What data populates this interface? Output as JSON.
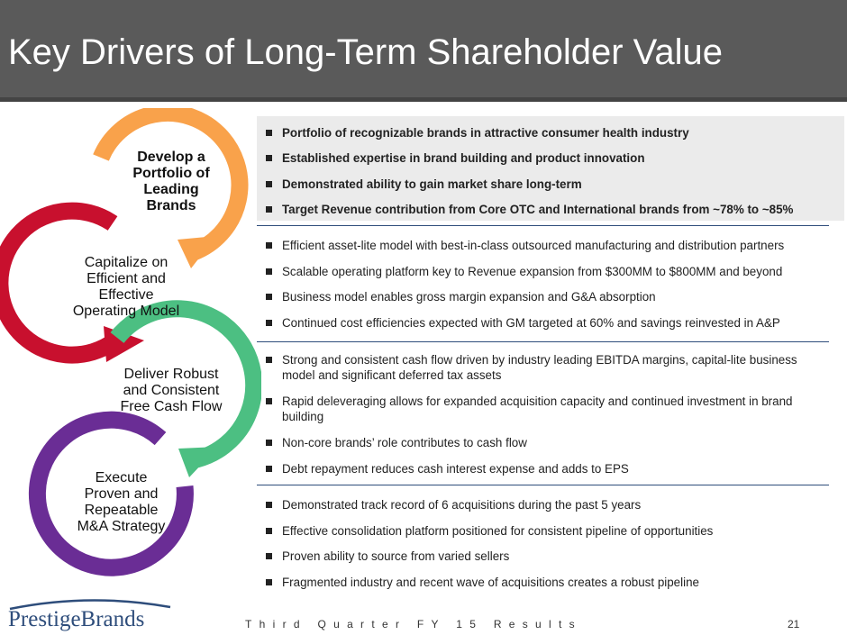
{
  "slide": {
    "title": "Key Drivers of Long-Term Shareholder Value",
    "footer": "Third Quarter FY 15 Results",
    "page_number": "21",
    "logo_text": "PrestigeBrands"
  },
  "colors": {
    "header_bg": "#5a5a5a",
    "orange": "#f9a24b",
    "red": "#c8102e",
    "green": "#4cbf82",
    "purple": "#6a2d95",
    "navy": "#2e4d7b"
  },
  "cycle": [
    {
      "label_lines": [
        "Develop a",
        "Portfolio of",
        "Leading",
        "Brands"
      ],
      "color": "orange"
    },
    {
      "label_lines": [
        "Capitalize on",
        "Efficient and",
        "Effective",
        "Operating Model"
      ],
      "color": "red"
    },
    {
      "label_lines": [
        "Deliver Robust",
        "and Consistent",
        "Free Cash Flow"
      ],
      "color": "green"
    },
    {
      "label_lines": [
        "Execute",
        "Proven and",
        "Repeatable",
        "M&A Strategy"
      ],
      "color": "purple"
    }
  ],
  "sections": [
    {
      "bullets": [
        "Portfolio of recognizable brands in attractive consumer health industry",
        "Established expertise in brand building and product innovation",
        "Demonstrated ability to gain market share long-term",
        "Target Revenue contribution from Core OTC and International brands from ~78% to ~85%"
      ]
    },
    {
      "bullets": [
        "Efficient asset-lite model with best-in-class outsourced manufacturing and distribution partners",
        "Scalable operating platform key to Revenue expansion from $300MM to $800MM and beyond",
        "Business model enables gross margin expansion and G&A absorption",
        "Continued cost efficiencies expected with GM targeted at 60% and savings reinvested in A&P"
      ]
    },
    {
      "bullets": [
        "Strong and consistent cash flow driven by industry leading EBITDA margins, capital-lite business model and significant deferred tax assets",
        "Rapid deleveraging allows for expanded acquisition capacity and continued investment in brand building",
        "Non-core brands’ role contributes to cash flow",
        "Debt repayment reduces cash interest expense and adds to EPS"
      ]
    },
    {
      "bullets": [
        "Demonstrated track record of 6 acquisitions during the past 5 years",
        "Effective consolidation platform positioned for consistent pipeline of opportunities",
        "Proven ability to source from varied sellers",
        "Fragmented industry and recent wave of acquisitions creates a robust pipeline"
      ]
    }
  ]
}
